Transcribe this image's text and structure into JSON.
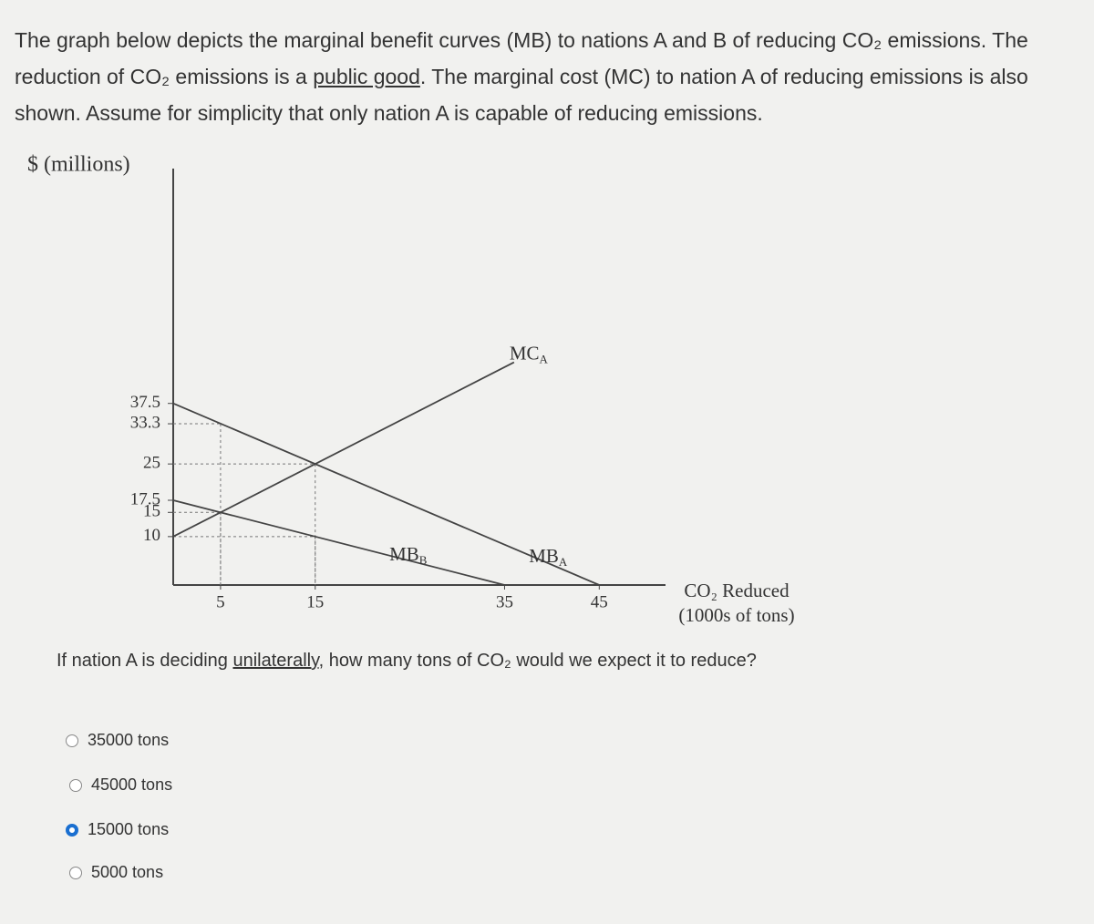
{
  "intro": [
    "The graph below depicts the marginal benefit curves (MB) to nations A and B of reducing CO₂ emissions. The reduction of CO₂ emissions is a ",
    "public good",
    ". The marginal cost (MC) to nation A of reducing emissions is also shown. Assume for simplicity that only nation A is capable of reducing emissions."
  ],
  "chart_data": {
    "type": "line",
    "y_label": "$ (millions)",
    "x_label": [
      "CO₂ Reduced",
      "(1000s of tons)"
    ],
    "xlim": [
      0,
      52
    ],
    "ylim": [
      0,
      86
    ],
    "xticks": [
      5,
      15,
      35,
      45
    ],
    "yticks": [
      37.5,
      33.3,
      25,
      17.5,
      15,
      10
    ],
    "guides": [
      [
        5,
        33.3
      ],
      [
        15,
        25
      ],
      [
        5,
        15
      ],
      [
        15,
        10
      ]
    ],
    "series": [
      {
        "name": "MC",
        "subscript": "A",
        "color": "#444444",
        "x": [
          0,
          36
        ],
        "values": [
          10,
          46
        ]
      },
      {
        "name": "MB",
        "subscript": "A",
        "color": "#444444",
        "x": [
          0,
          45
        ],
        "values": [
          37.5,
          0
        ]
      },
      {
        "name": "MB",
        "subscript": "B",
        "color": "#444444",
        "x": [
          0,
          35
        ],
        "values": [
          17.5,
          0
        ]
      }
    ]
  },
  "question": [
    "If nation A is deciding ",
    "unilaterally",
    ", how many tons of CO₂ would we expect it to reduce?"
  ],
  "options": [
    "35000 tons",
    "45000 tons",
    "15000 tons",
    "5000 tons"
  ],
  "selected": 2
}
